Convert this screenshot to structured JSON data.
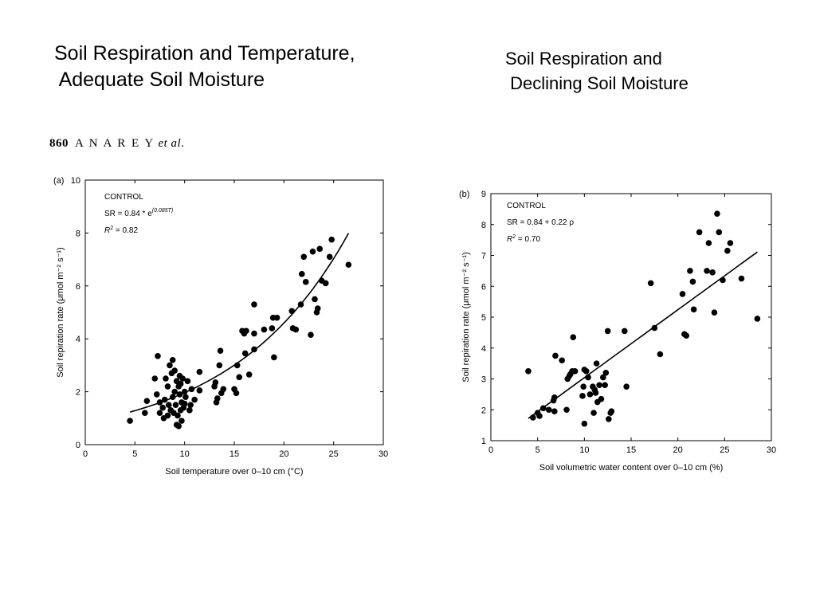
{
  "slide": {
    "title_left": [
      "Soil Respiration and Temperature,",
      " Adequate Soil Moisture"
    ],
    "title_right": [
      "Soil Respiration and",
      " Declining Soil Moisture"
    ]
  },
  "paper_header": {
    "page": "860",
    "author": "A N A  R E Y",
    "etal": "et al",
    "period": "."
  },
  "chart_data": [
    {
      "type": "scatter",
      "panel": "(a)",
      "xlabel": "Soil temperature over 0–10 cm (°C)",
      "ylabel": "Soil repiration rate (μmol m⁻² s⁻¹)",
      "xlim": [
        0,
        30
      ],
      "ylim": [
        0,
        10
      ],
      "xticks": [
        0,
        5,
        10,
        15,
        20,
        25,
        30
      ],
      "yticks": [
        0,
        2,
        4,
        6,
        8,
        10
      ],
      "annotation": {
        "label": "CONTROL",
        "equation": "SR = 0.84 * e",
        "exponent": "(0.085T)",
        "r2_label": "R",
        "r2_sup": "2",
        "r2_value": " = 0.82"
      },
      "fit": {
        "type": "exponential",
        "a": 0.84,
        "b": 0.085,
        "x_range": [
          4.5,
          26.5
        ]
      },
      "points": [
        [
          4.5,
          0.9
        ],
        [
          6,
          1.2
        ],
        [
          6.2,
          1.65
        ],
        [
          7,
          2.5
        ],
        [
          7.2,
          1.9
        ],
        [
          7.3,
          3.35
        ],
        [
          7.5,
          1.6
        ],
        [
          7.5,
          1.2
        ],
        [
          7.8,
          1.4
        ],
        [
          7.9,
          1.0
        ],
        [
          8,
          1.7
        ],
        [
          8.1,
          2.5
        ],
        [
          8.3,
          1.1
        ],
        [
          8.3,
          2.2
        ],
        [
          8.4,
          1.5
        ],
        [
          8.5,
          3.0
        ],
        [
          8.6,
          1.3
        ],
        [
          8.7,
          2.7
        ],
        [
          8.8,
          3.2
        ],
        [
          8.8,
          1.8
        ],
        [
          8.9,
          1.2
        ],
        [
          9,
          2.0
        ],
        [
          9,
          2.8
        ],
        [
          9.1,
          1.5
        ],
        [
          9.2,
          2.4
        ],
        [
          9.2,
          0.75
        ],
        [
          9.3,
          1.1
        ],
        [
          9.4,
          0.7
        ],
        [
          9.4,
          2.2
        ],
        [
          9.5,
          1.9
        ],
        [
          9.5,
          2.6
        ],
        [
          9.6,
          1.3
        ],
        [
          9.6,
          2.3
        ],
        [
          9.7,
          1.6
        ],
        [
          9.7,
          0.9
        ],
        [
          9.8,
          2.5
        ],
        [
          9.9,
          1.4
        ],
        [
          10,
          2.0
        ],
        [
          10,
          1.55
        ],
        [
          10.1,
          1.8
        ],
        [
          10.3,
          2.4
        ],
        [
          10.5,
          1.3
        ],
        [
          10.6,
          1.5
        ],
        [
          10.7,
          2.1
        ],
        [
          11,
          1.7
        ],
        [
          11.5,
          2.75
        ],
        [
          11.5,
          2.05
        ],
        [
          13,
          2.2
        ],
        [
          13.1,
          2.35
        ],
        [
          13.2,
          1.6
        ],
        [
          13.3,
          1.75
        ],
        [
          13.5,
          3.0
        ],
        [
          13.6,
          3.55
        ],
        [
          13.7,
          1.95
        ],
        [
          13.9,
          2.1
        ],
        [
          15,
          2.1
        ],
        [
          15.2,
          1.95
        ],
        [
          15.3,
          3.0
        ],
        [
          15.5,
          2.55
        ],
        [
          15.8,
          4.3
        ],
        [
          16,
          4.2
        ],
        [
          16.1,
          3.45
        ],
        [
          16.2,
          4.3
        ],
        [
          16.5,
          2.65
        ],
        [
          17,
          4.2
        ],
        [
          17,
          3.6
        ],
        [
          17,
          5.3
        ],
        [
          18,
          4.35
        ],
        [
          18.8,
          4.4
        ],
        [
          18.9,
          4.8
        ],
        [
          19,
          3.3
        ],
        [
          19.3,
          4.8
        ],
        [
          20.8,
          5.05
        ],
        [
          20.9,
          4.4
        ],
        [
          21.2,
          4.35
        ],
        [
          21.7,
          5.3
        ],
        [
          21.8,
          6.45
        ],
        [
          22,
          7.1
        ],
        [
          22.2,
          6.15
        ],
        [
          22.7,
          4.15
        ],
        [
          22.9,
          7.3
        ],
        [
          23.1,
          5.5
        ],
        [
          23.3,
          5.0
        ],
        [
          23.4,
          5.15
        ],
        [
          23.6,
          7.4
        ],
        [
          23.8,
          6.2
        ],
        [
          24.2,
          6.1
        ],
        [
          24.6,
          7.1
        ],
        [
          24.8,
          7.75
        ],
        [
          26.5,
          6.8
        ]
      ]
    },
    {
      "type": "scatter",
      "panel": "(b)",
      "xlabel": "Soil volumetric water content over 0–10 cm (%)",
      "ylabel": "Soil repiration rate (μmol m⁻² s⁻¹)",
      "xlim": [
        0,
        30
      ],
      "ylim": [
        1,
        9
      ],
      "xticks": [
        0,
        5,
        10,
        15,
        20,
        25,
        30
      ],
      "yticks": [
        1,
        2,
        3,
        4,
        5,
        6,
        7,
        8,
        9
      ],
      "annotation": {
        "label": "CONTROL",
        "equation": "SR = 0.84 + 0.22 ρ",
        "r2_label": "R",
        "r2_sup": "2",
        "r2_value": " = 0.70"
      },
      "fit": {
        "type": "linear",
        "a": 0.84,
        "b": 0.22,
        "x_range": [
          4,
          28.5
        ]
      },
      "points": [
        [
          4,
          3.25
        ],
        [
          4.5,
          1.75
        ],
        [
          5,
          1.9
        ],
        [
          5.2,
          1.8
        ],
        [
          5.6,
          2.05
        ],
        [
          6.2,
          2.0
        ],
        [
          6.7,
          2.3
        ],
        [
          6.8,
          2.4
        ],
        [
          6.8,
          1.95
        ],
        [
          6.9,
          3.75
        ],
        [
          7.6,
          3.6
        ],
        [
          8.1,
          2.0
        ],
        [
          8.2,
          3.0
        ],
        [
          8.4,
          3.1
        ],
        [
          8.5,
          3.15
        ],
        [
          8.7,
          3.25
        ],
        [
          8.8,
          4.35
        ],
        [
          9,
          3.25
        ],
        [
          9.8,
          2.45
        ],
        [
          9.9,
          2.75
        ],
        [
          10,
          3.3
        ],
        [
          10,
          1.55
        ],
        [
          10.2,
          3.25
        ],
        [
          10.4,
          3.05
        ],
        [
          10.6,
          2.5
        ],
        [
          10.9,
          2.75
        ],
        [
          11,
          1.9
        ],
        [
          11.1,
          2.65
        ],
        [
          11.2,
          2.55
        ],
        [
          11.3,
          3.5
        ],
        [
          11.4,
          2.25
        ],
        [
          11.6,
          2.8
        ],
        [
          11.8,
          2.35
        ],
        [
          12,
          3.05
        ],
        [
          12.2,
          2.8
        ],
        [
          12.3,
          3.2
        ],
        [
          12.5,
          4.55
        ],
        [
          12.6,
          1.7
        ],
        [
          12.8,
          1.9
        ],
        [
          12.9,
          1.95
        ],
        [
          14.3,
          4.55
        ],
        [
          14.5,
          2.75
        ],
        [
          17.1,
          6.1
        ],
        [
          17.5,
          4.65
        ],
        [
          18.1,
          3.8
        ],
        [
          20.5,
          5.75
        ],
        [
          20.7,
          4.45
        ],
        [
          20.9,
          4.4
        ],
        [
          21.3,
          6.5
        ],
        [
          21.6,
          6.15
        ],
        [
          21.7,
          5.25
        ],
        [
          22.3,
          7.75
        ],
        [
          23.1,
          6.5
        ],
        [
          23.3,
          7.4
        ],
        [
          23.7,
          6.45
        ],
        [
          23.9,
          5.15
        ],
        [
          24.2,
          8.35
        ],
        [
          24.4,
          7.75
        ],
        [
          24.8,
          6.2
        ],
        [
          25.3,
          7.15
        ],
        [
          25.6,
          7.4
        ],
        [
          26.8,
          6.25
        ],
        [
          28.5,
          4.95
        ]
      ]
    }
  ]
}
